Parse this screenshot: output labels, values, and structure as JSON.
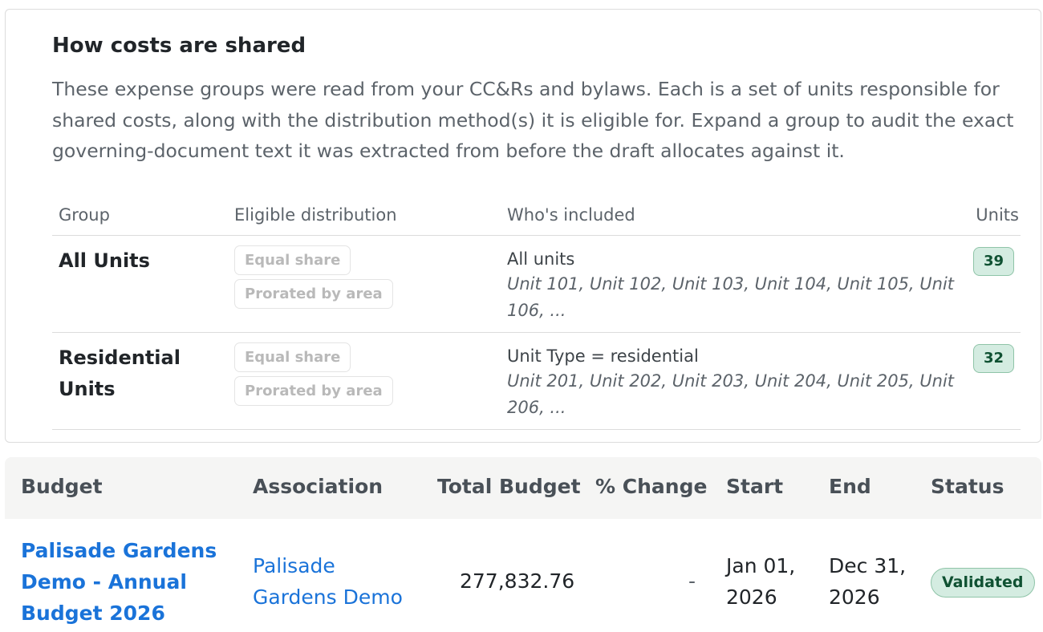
{
  "costs_card": {
    "title": "How costs are shared",
    "description": "These expense groups were read from your CC&Rs and bylaws. Each is a set of units responsible for shared costs, along with the distribution method(s) it is eligible for. Expand a group to audit the exact governing-document text it was extracted from before the draft allocates against it.",
    "columns": {
      "group": "Group",
      "distribution": "Eligible distribution",
      "included": "Who's included",
      "units": "Units"
    },
    "groups": [
      {
        "name": "All Units",
        "methods": [
          "Equal share",
          "Prorated by area"
        ],
        "rule": "All units",
        "unit_list": "Unit 101, Unit 102, Unit 103, Unit 104, Unit 105, Unit 106, ...",
        "count": "39"
      },
      {
        "name": "Residential Units",
        "methods": [
          "Equal share",
          "Prorated by area"
        ],
        "rule": "Unit Type = residential",
        "unit_list": "Unit 201, Unit 202, Unit 203, Unit 204, Unit 205, Unit 206, ...",
        "count": "32"
      }
    ]
  },
  "budget_table": {
    "columns": {
      "budget": "Budget",
      "association": "Association",
      "total": "Total Budget",
      "change": "% Change",
      "start": "Start",
      "end": "End",
      "status": "Status"
    },
    "rows": [
      {
        "budget": "Palisade Gardens Demo - Annual Budget 2026",
        "association": "Palisade Gardens Demo",
        "total": "277,832.76",
        "change": "-",
        "start": "Jan 01, 2026",
        "end": "Dec 31, 2026",
        "status": "Validated"
      }
    ]
  },
  "colors": {
    "link": "#1a73d9",
    "badge_bg": "#d4ece1",
    "badge_text": "#0f5132"
  }
}
